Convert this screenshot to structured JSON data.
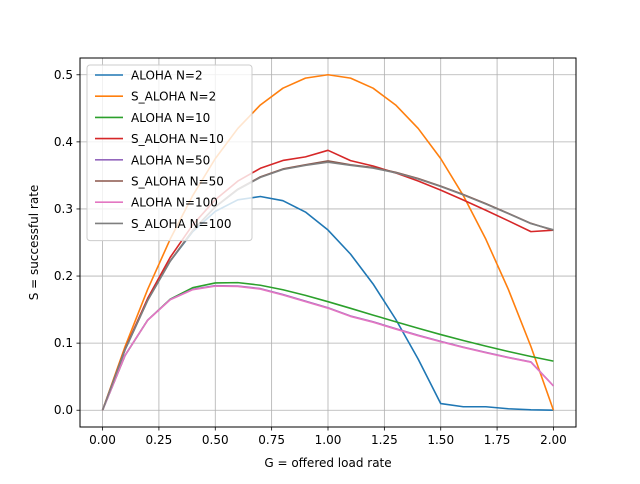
{
  "chart_data": {
    "type": "line",
    "title": "",
    "xlabel": "G = offered load rate",
    "ylabel": "S = successful rate",
    "xlim": [
      -0.1,
      2.1
    ],
    "ylim": [
      -0.025,
      0.525
    ],
    "xticks": [
      0.0,
      0.25,
      0.5,
      0.75,
      1.0,
      1.25,
      1.5,
      1.75,
      2.0
    ],
    "xtick_labels": [
      "0.00",
      "0.25",
      "0.50",
      "0.75",
      "1.00",
      "1.25",
      "1.50",
      "1.75",
      "2.00"
    ],
    "yticks": [
      0.0,
      0.1,
      0.2,
      0.3,
      0.4,
      0.5
    ],
    "ytick_labels": [
      "0.0",
      "0.1",
      "0.2",
      "0.3",
      "0.4",
      "0.5"
    ],
    "grid": true,
    "legend_position": "top-left",
    "x": [
      0.0,
      0.1,
      0.2,
      0.3,
      0.4,
      0.5,
      0.6,
      0.7,
      0.8,
      0.9,
      1.0,
      1.1,
      1.2,
      1.3,
      1.4,
      1.5,
      1.6,
      1.7,
      1.8,
      1.9,
      2.0
    ],
    "series": [
      {
        "name": "ALOHA N=2",
        "color": "#1f77b4",
        "values": [
          0.0,
          0.0902,
          0.1638,
          0.2222,
          0.2662,
          0.2964,
          0.3136,
          0.3186,
          0.3123,
          0.2954,
          0.2686,
          0.2327,
          0.1882,
          0.1358,
          0.0762,
          0.0099,
          0.0052,
          0.0052,
          0.0022,
          0.0006,
          0.0
        ]
      },
      {
        "name": "S_ALOHA N=2",
        "color": "#ff7f0e",
        "values": [
          0.0,
          0.095,
          0.18,
          0.255,
          0.32,
          0.375,
          0.42,
          0.455,
          0.48,
          0.495,
          0.5,
          0.495,
          0.48,
          0.455,
          0.42,
          0.375,
          0.32,
          0.255,
          0.18,
          0.095,
          0.0
        ]
      },
      {
        "name": "ALOHA N=10",
        "color": "#2ca02c",
        "values": [
          0.0,
          0.0817,
          0.1342,
          0.1655,
          0.1826,
          0.1897,
          0.1902,
          0.1863,
          0.1796,
          0.1712,
          0.1618,
          0.1519,
          0.1418,
          0.1319,
          0.1222,
          0.1128,
          0.1039,
          0.0955,
          0.0875,
          0.0801,
          0.0732
        ]
      },
      {
        "name": "S_ALOHA N=10",
        "color": "#d62728",
        "values": [
          0.0,
          0.0914,
          0.1667,
          0.2278,
          0.2764,
          0.3138,
          0.3415,
          0.3606,
          0.3723,
          0.3776,
          0.3874,
          0.372,
          0.364,
          0.3537,
          0.3416,
          0.328,
          0.3134,
          0.2981,
          0.2823,
          0.2662,
          0.2684
        ]
      },
      {
        "name": "ALOHA N=50",
        "color": "#9467bd",
        "values": [
          0.0,
          0.082,
          0.1343,
          0.165,
          0.1802,
          0.1856,
          0.1851,
          0.1813,
          0.1724,
          0.1625,
          0.1528,
          0.1404,
          0.1318,
          0.1216,
          0.1117,
          0.1026,
          0.0941,
          0.0862,
          0.0787,
          0.072,
          0.0363
        ]
      },
      {
        "name": "S_ALOHA N=50",
        "color": "#8c564b",
        "values": [
          0.0,
          0.0906,
          0.1639,
          0.2224,
          0.2681,
          0.3033,
          0.3295,
          0.3478,
          0.3596,
          0.3658,
          0.3716,
          0.3659,
          0.3617,
          0.3547,
          0.3453,
          0.3341,
          0.3215,
          0.3079,
          0.2935,
          0.2786,
          0.2681
        ]
      },
      {
        "name": "ALOHA N=100",
        "color": "#e377c2",
        "values": [
          0.0,
          0.0819,
          0.1341,
          0.1647,
          0.1797,
          0.185,
          0.1845,
          0.1806,
          0.1717,
          0.1618,
          0.1521,
          0.1398,
          0.1312,
          0.121,
          0.1111,
          0.102,
          0.0936,
          0.0857,
          0.0783,
          0.0716,
          0.0362
        ]
      },
      {
        "name": "S_ALOHA N=100",
        "color": "#7f7f7f",
        "values": [
          0.0,
          0.0905,
          0.1637,
          0.2221,
          0.2677,
          0.3027,
          0.3288,
          0.347,
          0.3588,
          0.365,
          0.3697,
          0.3651,
          0.3609,
          0.3539,
          0.3446,
          0.3335,
          0.3209,
          0.3073,
          0.293,
          0.2781,
          0.2689
        ]
      }
    ]
  }
}
